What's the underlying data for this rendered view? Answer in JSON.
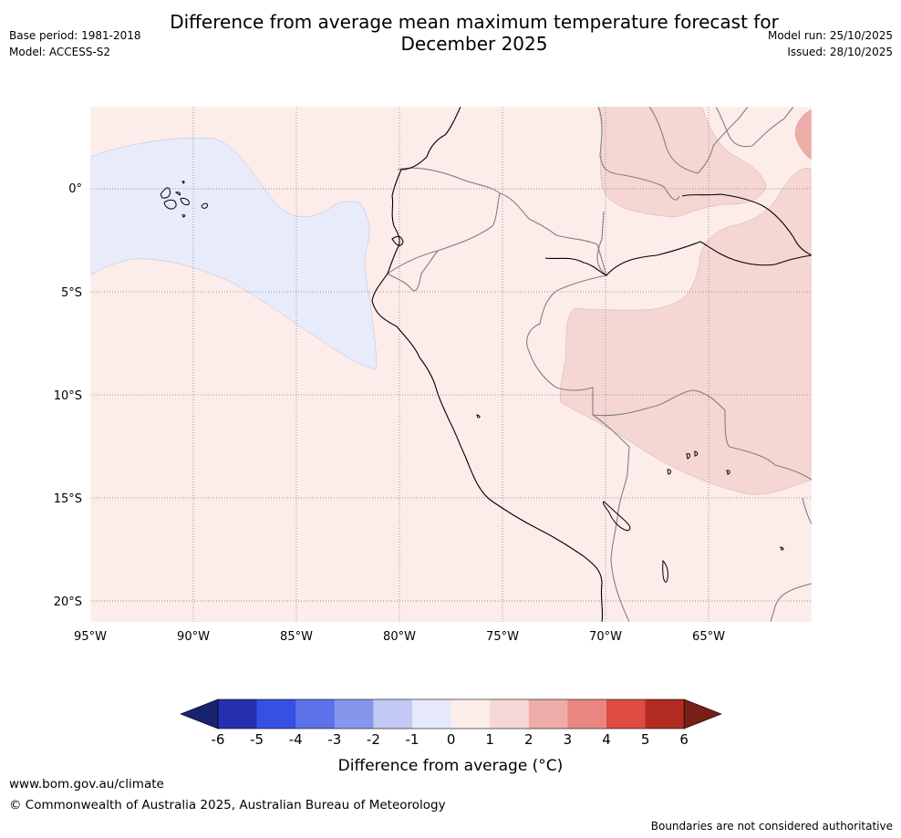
{
  "title": "Difference from average mean maximum temperature forecast for December 2025",
  "base_period": "Base period: 1981-2018",
  "model": "Model: ACCESS-S2",
  "model_run": "Model run: 25/10/2025",
  "issued": "Issued: 28/10/2025",
  "map": {
    "lon_labels": [
      "95°W",
      "90°W",
      "85°W",
      "80°W",
      "75°W",
      "70°W",
      "65°W"
    ],
    "lat_labels": [
      "0°",
      "5°S",
      "10°S",
      "15°S",
      "20°S"
    ],
    "lon_values": [
      -95,
      -90,
      -85,
      -80,
      -75,
      -70,
      -65
    ],
    "lat_values": [
      0,
      -5,
      -10,
      -15,
      -20
    ],
    "extent": {
      "lon_min": -95,
      "lon_max": -60,
      "lat_min": -21,
      "lat_max": 4
    }
  },
  "legend": {
    "title": "Difference from average (°C)",
    "tick_labels": [
      "-6",
      "-5",
      "-4",
      "-3",
      "-2",
      "-1",
      "0",
      "1",
      "2",
      "3",
      "4",
      "5",
      "6"
    ],
    "colors": [
      "#262fae",
      "#3550e2",
      "#5c72e8",
      "#8696ed",
      "#c2c9f5",
      "#e6e9fb",
      "#fcecea",
      "#f6d7d5",
      "#eeaca8",
      "#e88780",
      "#de4b40",
      "#b12b23"
    ],
    "under_color": "#1a2370",
    "over_color": "#7a1e18"
  },
  "footer": {
    "url": "www.bom.gov.au/climate",
    "copyright": "© Commonwealth of Australia 2025, Australian Bureau of Meteorology",
    "disclaimer": "Boundaries are not considered authoritative"
  }
}
